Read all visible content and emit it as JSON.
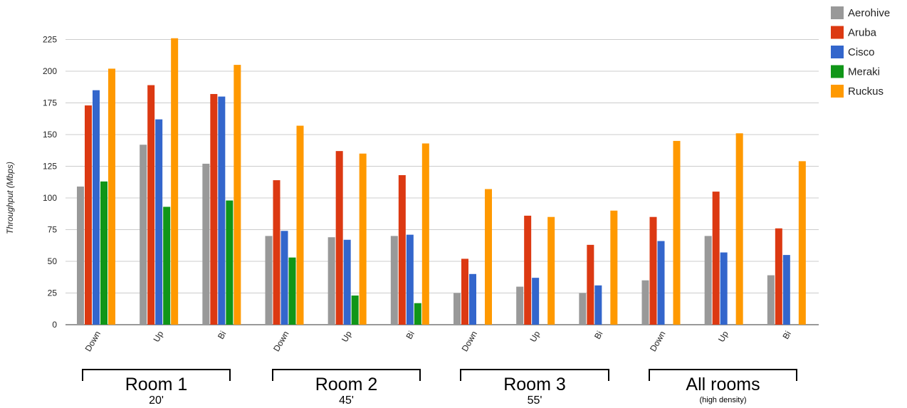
{
  "chart_data": {
    "type": "bar",
    "ylabel": "Throughput (Mbps)",
    "ylim": [
      0,
      250
    ],
    "yticks": [
      0,
      25,
      50,
      75,
      100,
      125,
      150,
      175,
      200,
      225
    ],
    "grid": true,
    "legend_position": "top-right",
    "categories": [
      "Down",
      "Up",
      "Bi",
      "Down",
      "Up",
      "Bi",
      "Down",
      "Up",
      "Bi",
      "Down",
      "Up",
      "Bi"
    ],
    "groups": [
      {
        "title": "Room 1",
        "subtitle": "20'"
      },
      {
        "title": "Room 2",
        "subtitle": "45'"
      },
      {
        "title": "Room 3",
        "subtitle": "55'"
      },
      {
        "title": "All rooms",
        "subtitle": "(high density)"
      }
    ],
    "series": [
      {
        "name": "Aerohive",
        "color": "#999999",
        "values": [
          109,
          142,
          127,
          70,
          69,
          70,
          25,
          30,
          25,
          35,
          70,
          39
        ]
      },
      {
        "name": "Aruba",
        "color": "#dc3912",
        "values": [
          173,
          189,
          182,
          114,
          137,
          118,
          52,
          86,
          63,
          85,
          105,
          76
        ]
      },
      {
        "name": "Cisco",
        "color": "#3366cc",
        "values": [
          185,
          162,
          180,
          74,
          67,
          71,
          40,
          37,
          31,
          66,
          57,
          55
        ]
      },
      {
        "name": "Meraki",
        "color": "#109618",
        "values": [
          113,
          93,
          98,
          53,
          23,
          17,
          0,
          0,
          0,
          0,
          0,
          0
        ]
      },
      {
        "name": "Ruckus",
        "color": "#ff9900",
        "values": [
          202,
          226,
          205,
          157,
          135,
          143,
          107,
          85,
          90,
          145,
          151,
          129
        ]
      }
    ]
  }
}
